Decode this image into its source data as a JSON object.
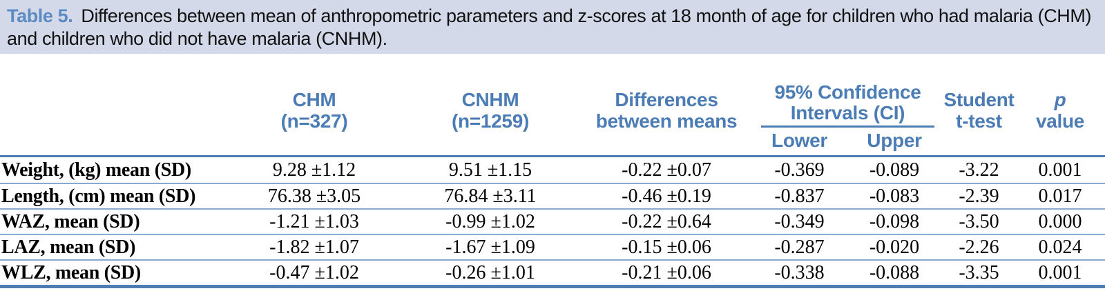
{
  "caption": {
    "label": "Table 5.",
    "text": "Differences between mean of anthropometric parameters and z-scores at 18 month of age for children who had malaria (CHM) and children who did not have malaria (CNHM)."
  },
  "header": {
    "chm": {
      "line1": "CHM",
      "line2": "(n=327)"
    },
    "cnhm": {
      "line1": "CNHM",
      "line2": "(n=1259)"
    },
    "diff": {
      "line1": "Differences",
      "line2": "between means"
    },
    "ci": {
      "line1": "95% Confidence",
      "line2": "Intervals (CI)",
      "lower": "Lower",
      "upper": "Upper"
    },
    "student": {
      "line1": "Student",
      "line2": "t-test"
    },
    "pvalue": {
      "line1": "p",
      "line2": "value"
    }
  },
  "rows": [
    {
      "label": "Weight, (kg) mean (SD)",
      "chm": "9.28 ±1.12",
      "cnhm": "9.51 ±1.15",
      "diff": "-0.22 ±0.07",
      "lower": "-0.369",
      "upper": "-0.089",
      "t": "-3.22",
      "p": "0.001"
    },
    {
      "label": "Length, (cm) mean (SD)",
      "chm": "76.38 ±3.05",
      "cnhm": "76.84 ±3.11",
      "diff": "-0.46 ±0.19",
      "lower": "-0.837",
      "upper": "-0.083",
      "t": "-2.39",
      "p": "0.017"
    },
    {
      "label": "WAZ, mean (SD)",
      "chm": "-1.21 ±1.03",
      "cnhm": "-0.99 ±1.02",
      "diff": "-0.22 ±0.64",
      "lower": "-0.349",
      "upper": "-0.098",
      "t": "-3.50",
      "p": "0.000"
    },
    {
      "label": "LAZ, mean (SD)",
      "chm": "-1.82 ±1.07",
      "cnhm": "-1.67 ±1.09",
      "diff": "-0.15 ±0.06",
      "lower": "-0.287",
      "upper": "-0.020",
      "t": "-2.26",
      "p": "0.024"
    },
    {
      "label": "WLZ, mean (SD)",
      "chm": "-0.47 ±1.02",
      "cnhm": "-0.26 ±1.01",
      "diff": "-0.21 ±0.06",
      "lower": "-0.338",
      "upper": "-0.088",
      "t": "-3.35",
      "p": "0.001"
    }
  ],
  "colors": {
    "caption_bg": "#d3d9e9",
    "caption_label_blue": "#5b8bc2",
    "header_blue": "#4b7cb6",
    "rule_dark": "#4d7cb2",
    "rule_light": "#86a9d2"
  }
}
